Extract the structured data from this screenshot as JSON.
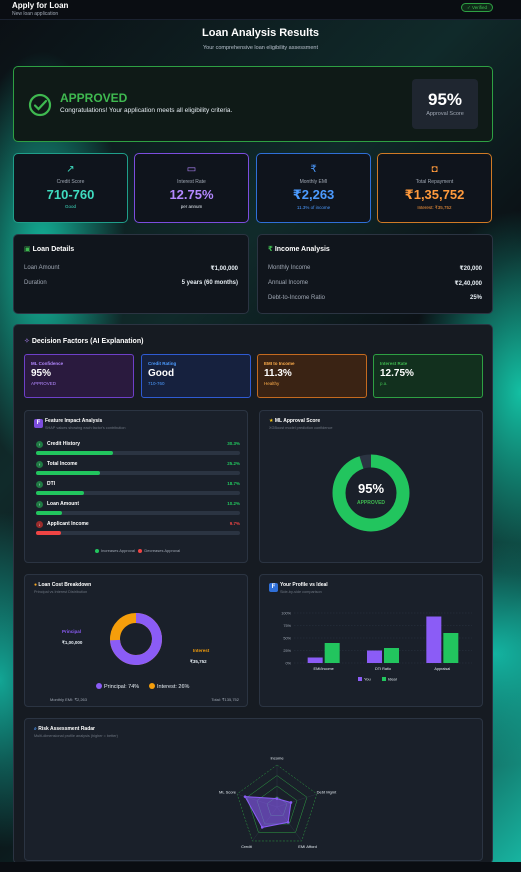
{
  "header": {
    "title": "Apply for Loan",
    "subtitle": "New loan application",
    "badge": "✓ Verified"
  },
  "page": {
    "title": "Loan Analysis Results",
    "subtitle": "Your comprehensive loan eligibility assessment"
  },
  "status": {
    "heading": "APPROVED",
    "message": "Congratulations! Your application meets all eligibility criteria.",
    "score": "95%",
    "score_label": "Approval Score"
  },
  "stats": [
    {
      "label": "Credit Score",
      "value": "710-760",
      "sub": "Good",
      "icon": "trend-up-icon",
      "color": "#3fdcc0"
    },
    {
      "label": "Interest Rate",
      "value": "12.75%",
      "sub": "per annum",
      "icon": "card-icon",
      "color": "#b388ff"
    },
    {
      "label": "Monthly EMI",
      "value": "₹2,263",
      "sub": "11.3% of income",
      "icon": "rupee-icon",
      "color": "#4c9bff"
    },
    {
      "label": "Total Repayment",
      "value": "₹1,35,752",
      "sub": "Interest: ₹35,752",
      "icon": "wallet-icon",
      "color": "#ff9a3c"
    }
  ],
  "loan_details": {
    "title": "Loan Details",
    "rows": [
      {
        "k": "Loan Amount",
        "v": "₹1,00,000"
      },
      {
        "k": "Duration",
        "v": "5 years (60 months)"
      }
    ]
  },
  "income_analysis": {
    "title": "Income Analysis",
    "rows": [
      {
        "k": "Monthly Income",
        "v": "₹20,000"
      },
      {
        "k": "Annual Income",
        "v": "₹2,40,000"
      },
      {
        "k": "Debt-to-Income Ratio",
        "v": "25%"
      }
    ]
  },
  "decision": {
    "title": "Decision Factors (AI Explanation)",
    "minis": [
      {
        "a": "ML Confidence",
        "b": "95%",
        "c": "APPROVED",
        "bg": "#2a1a3e",
        "bd": "#6e40c9",
        "col": "#b388ff"
      },
      {
        "a": "Credit Rating",
        "b": "Good",
        "c": "710-760",
        "bg": "#16213e",
        "bd": "#2f5bd3",
        "col": "#4c9bff"
      },
      {
        "a": "EMI to Income",
        "b": "11.3%",
        "c": "Healthy",
        "bg": "#3a2314",
        "bd": "#c46a1f",
        "col": "#ffae4c"
      },
      {
        "a": "Interest Rate",
        "b": "12.75%",
        "c": "p.a.",
        "bg": "#12301e",
        "bd": "#2ea043",
        "col": "#3fb950"
      }
    ]
  },
  "feature_impact": {
    "title": "Feature Impact Analysis",
    "subtitle": "SHAP values showing each factor's contribution",
    "items": [
      {
        "name": "Credit History",
        "pct": "30.3%",
        "value": 30.3,
        "positive": true
      },
      {
        "name": "Total Income",
        "pct": "25.2%",
        "value": 25.2,
        "positive": true
      },
      {
        "name": "DTI",
        "pct": "18.7%",
        "value": 18.7,
        "positive": true
      },
      {
        "name": "Loan Amount",
        "pct": "10.2%",
        "value": 10.2,
        "positive": true
      },
      {
        "name": "Applicant Income",
        "pct": "9.7%",
        "value": 9.7,
        "positive": false
      }
    ],
    "legend_pos": "Increases Approval",
    "legend_neg": "Decreases Approval"
  },
  "ml_score": {
    "title": "ML Approval Score",
    "subtitle": "XGBoost model prediction confidence",
    "value": "95%",
    "label": "APPROVED",
    "fraction": 0.95
  },
  "cost": {
    "title": "Loan Cost Breakdown",
    "subtitle": "Principal vs Interest Distribution",
    "principal_label": "Principal",
    "principal_value": "₹1,00,000",
    "interest_label": "Interest",
    "interest_value": "₹35,752",
    "legend_principal": "Principal: 74%",
    "legend_interest": "Interest: 26%",
    "principal_fraction": 0.74,
    "emi_label": "Monthly EMI: ₹2,263",
    "total_label": "Total: ₹135,752"
  },
  "profile": {
    "title": "Your Profile vs Ideal",
    "subtitle": "Side-by-side comparison"
  },
  "chart_data": {
    "type": "bar",
    "categories": [
      "EMI/Income",
      "DTI Ratio",
      "Appraisal"
    ],
    "series": [
      {
        "name": "You",
        "values": [
          11,
          25,
          93
        ],
        "color": "#8b5cf6"
      },
      {
        "name": "Ideal",
        "values": [
          40,
          30,
          60
        ],
        "color": "#22c55e"
      }
    ],
    "yticks": [
      "100%",
      "75%",
      "50%",
      "25%",
      "0%"
    ],
    "ylim": [
      0,
      100
    ],
    "legend": "bottom"
  },
  "radar": {
    "title": "Risk Assessment Radar",
    "subtitle": "Multi-dimensional profile analysis (higher = better)",
    "axes": [
      "Income",
      "Debt Mgmt",
      "EMI Afford",
      "Credit",
      "ML Score"
    ],
    "values": [
      0.2,
      0.35,
      0.45,
      0.6,
      0.8
    ]
  }
}
